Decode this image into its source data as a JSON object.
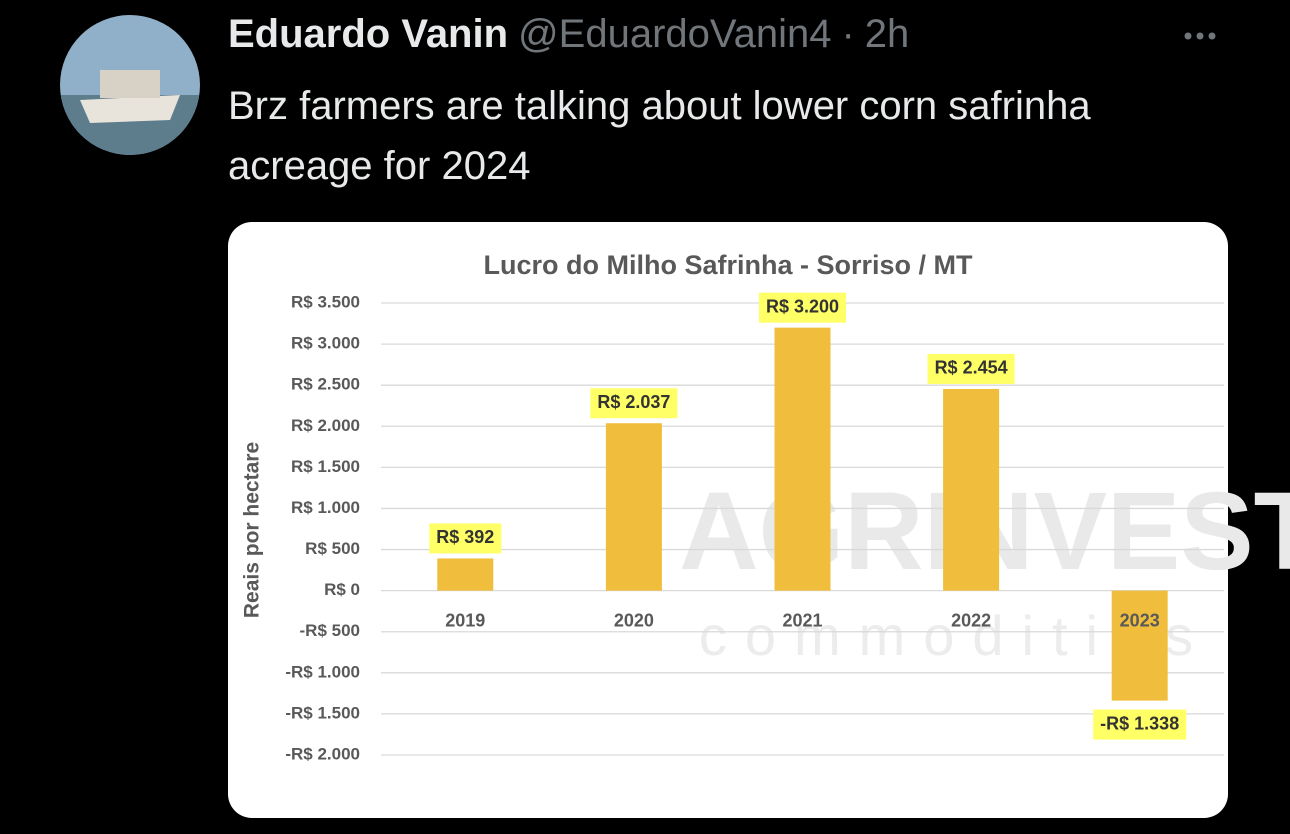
{
  "tweet": {
    "name": "Eduardo Vanin",
    "handle": "@EduardoVanin4",
    "separator": "·",
    "time": "2h",
    "text": "Brz farmers are talking about lower corn safrinha acreage for 2024"
  },
  "chart_data": {
    "type": "bar",
    "title": "Lucro do Milho Safrinha - Sorriso / MT",
    "y_label": "Reais por hectare",
    "watermark": "AGRINVEST",
    "watermark_subtitle": "commodities",
    "categories": [
      "2019",
      "2020",
      "2021",
      "2022",
      "2023"
    ],
    "values": [
      392,
      2037,
      3200,
      2454,
      -1338
    ],
    "value_labels": [
      "R$ 392",
      "R$ 2.037",
      "R$ 3.200",
      "R$ 2.454",
      "-R$ 1.338"
    ],
    "color": "#f0be3c",
    "label_background": "#ffff66",
    "ylim": [
      -2000,
      3500
    ],
    "yticks": [
      {
        "value": -2000,
        "label": "-R$ 2.000"
      },
      {
        "value": -1500,
        "label": "-R$ 1.500"
      },
      {
        "value": -1000,
        "label": "-R$ 1.000"
      },
      {
        "value": -500,
        "label": "-R$ 500"
      },
      {
        "value": 0,
        "label": "R$ 0"
      },
      {
        "value": 500,
        "label": "R$ 500"
      },
      {
        "value": 1000,
        "label": "R$ 1.000"
      },
      {
        "value": 1500,
        "label": "R$ 1.500"
      },
      {
        "value": 2000,
        "label": "R$ 2.000"
      },
      {
        "value": 2500,
        "label": "R$ 2.500"
      },
      {
        "value": 3000,
        "label": "R$ 3.000"
      },
      {
        "value": 3500,
        "label": "R$ 3.500"
      }
    ],
    "grid": true
  }
}
